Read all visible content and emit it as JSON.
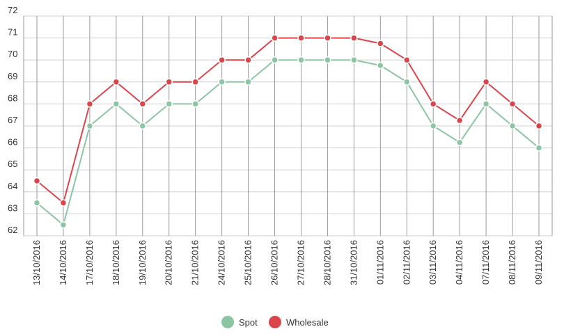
{
  "chart_data": {
    "type": "line",
    "title": "",
    "xlabel": "",
    "ylabel": "",
    "ylim": [
      62,
      72
    ],
    "y_ticks": [
      62,
      63,
      64,
      65,
      66,
      67,
      68,
      69,
      70,
      71,
      72
    ],
    "grid": true,
    "legend_position": "bottom-center",
    "categories": [
      "13/10/2016",
      "14/10/2016",
      "17/10/2016",
      "18/10/2016",
      "19/10/2016",
      "20/10/2016",
      "21/10/2016",
      "24/10/2016",
      "25/10/2016",
      "26/10/2016",
      "27/10/2016",
      "28/10/2016",
      "31/10/2016",
      "01/11/2016",
      "02/11/2016",
      "03/11/2016",
      "04/11/2016",
      "07/11/2016",
      "08/11/2016",
      "09/11/2016"
    ],
    "series": [
      {
        "name": "Spot",
        "color": "#8cc5a4",
        "values": [
          63.5,
          62.5,
          67,
          68,
          67,
          68,
          68,
          69,
          69,
          70,
          70,
          70,
          70,
          69.75,
          69,
          67,
          66.25,
          68,
          67,
          66
        ]
      },
      {
        "name": "Wholesale",
        "color": "#d9454b",
        "values": [
          64.5,
          63.5,
          68,
          69,
          68,
          69,
          69,
          70,
          70,
          71,
          71,
          71,
          71,
          70.75,
          70,
          68,
          67.25,
          69,
          68,
          67
        ]
      }
    ]
  }
}
